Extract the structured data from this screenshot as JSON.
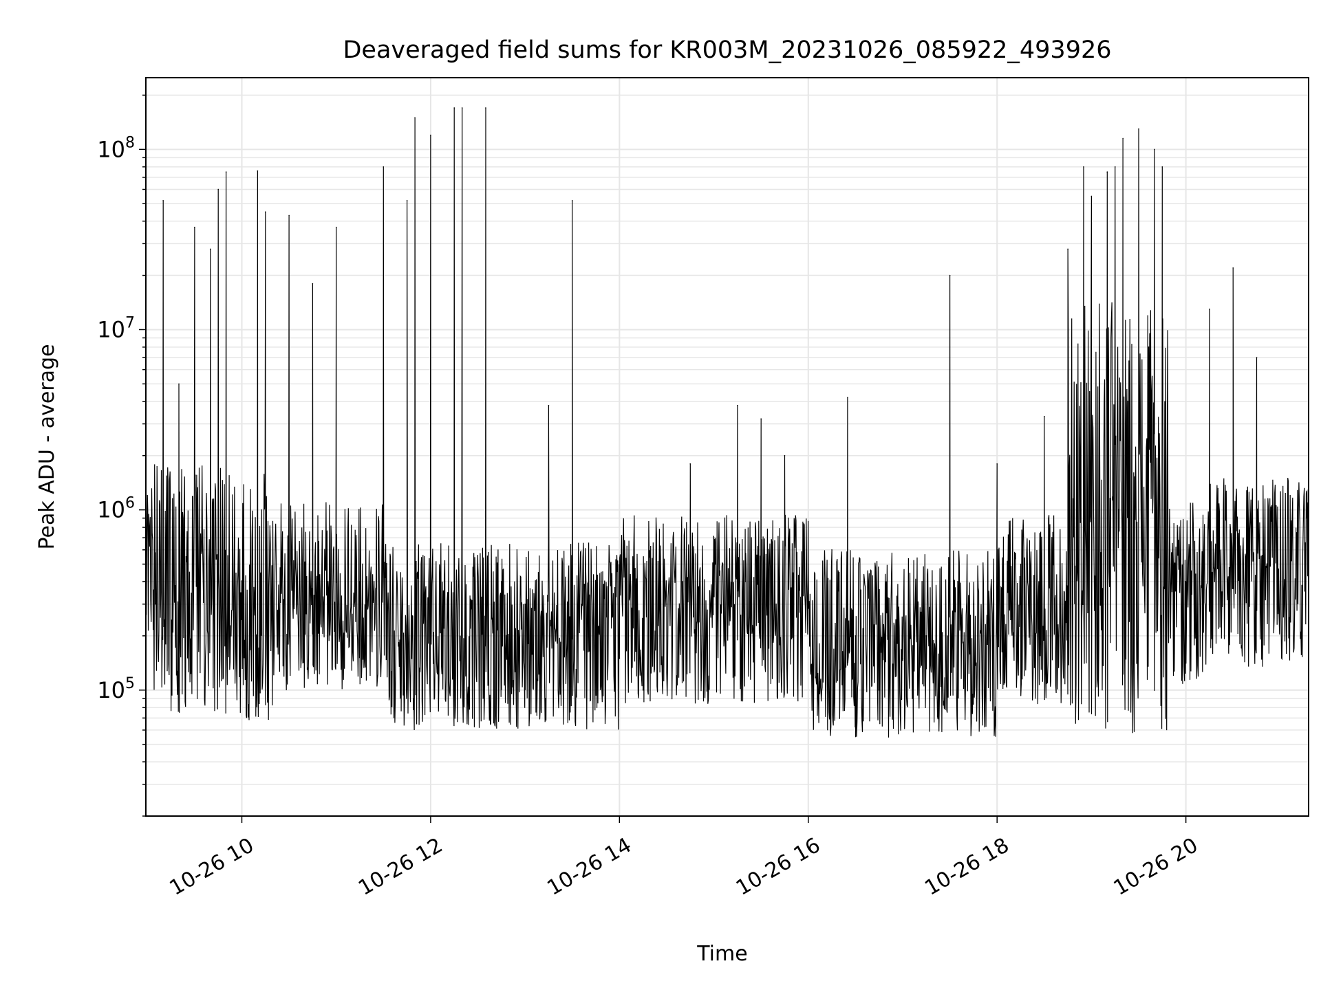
{
  "chart_data": {
    "type": "line",
    "title": "Deaveraged field sums for KR003M_20231026_085922_493926",
    "xlabel": "Time",
    "ylabel": "Peak ADU - average",
    "y_scale": "log",
    "xlim": [
      "10-26 08:59",
      "10-26 21:18"
    ],
    "ylim": [
      20000,
      250000000
    ],
    "x_ticks": [
      {
        "label": "10-26 10",
        "value": "10-26 10:00"
      },
      {
        "label": "10-26 12",
        "value": "10-26 12:00"
      },
      {
        "label": "10-26 14",
        "value": "10-26 14:00"
      },
      {
        "label": "10-26 16",
        "value": "10-26 16:00"
      },
      {
        "label": "10-26 18",
        "value": "10-26 18:00"
      },
      {
        "label": "10-26 20",
        "value": "10-26 20:00"
      }
    ],
    "y_ticks": [
      {
        "base": "10",
        "exp": "5",
        "value": 100000
      },
      {
        "base": "10",
        "exp": "6",
        "value": 1000000
      },
      {
        "base": "10",
        "exp": "7",
        "value": 10000000
      },
      {
        "base": "10",
        "exp": "8",
        "value": 100000000
      }
    ],
    "grid": true,
    "line_color": "#000000",
    "grid_color": "#e6e6e6",
    "series": [
      {
        "x": [
          "10-26 09:00",
          "10-26 09:05",
          "10-26 09:10",
          "10-26 09:20",
          "10-26 09:30",
          "10-26 09:40",
          "10-26 09:45",
          "10-26 09:50",
          "10-26 10:00",
          "10-26 10:10",
          "10-26 10:15",
          "10-26 10:30",
          "10-26 10:35",
          "10-26 10:45",
          "10-26 11:00",
          "10-26 11:15",
          "10-26 11:30",
          "10-26 11:45",
          "10-26 11:50",
          "10-26 12:00",
          "10-26 12:15",
          "10-26 12:20",
          "10-26 12:30",
          "10-26 12:35",
          "10-26 12:45",
          "10-26 13:00",
          "10-26 13:15",
          "10-26 13:30",
          "10-26 13:45",
          "10-26 14:00",
          "10-26 14:15",
          "10-26 14:30",
          "10-26 14:45",
          "10-26 15:00",
          "10-26 15:15",
          "10-26 15:20",
          "10-26 15:30",
          "10-26 15:45",
          "10-26 16:00",
          "10-26 16:15",
          "10-26 16:25",
          "10-26 16:30",
          "10-26 16:45",
          "10-26 17:00",
          "10-26 17:15",
          "10-26 17:30",
          "10-26 17:35",
          "10-26 17:45",
          "10-26 18:00",
          "10-26 18:15",
          "10-26 18:30",
          "10-26 18:45",
          "10-26 18:55",
          "10-26 19:00",
          "10-26 19:10",
          "10-26 19:15",
          "10-26 19:20",
          "10-26 19:30",
          "10-26 19:40",
          "10-26 19:45",
          "10-26 20:00",
          "10-26 20:15",
          "10-26 20:30",
          "10-26 20:45",
          "10-26 21:00",
          "10-26 21:10",
          "10-26 21:17"
        ],
        "values": [
          1200000,
          300000,
          52000000,
          5000000,
          37000000,
          28000000,
          60000000,
          75000000,
          400000,
          76000000,
          45000000,
          43000000,
          300000,
          18000000,
          37000000,
          400000,
          80000000,
          52000000,
          150000000,
          120000000,
          170000000,
          170000000,
          500000,
          170000000,
          400000,
          300000,
          3800000,
          52000000,
          200000,
          150000,
          100000,
          300000,
          1800000,
          700000,
          3800000,
          400000,
          3200000,
          2000000,
          500000,
          600000,
          4200000,
          200000,
          100000,
          150000,
          200000,
          20000000,
          400000,
          300000,
          1800000,
          500000,
          3300000,
          28000000,
          80000000,
          55000000,
          75000000,
          80000000,
          115000000,
          130000000,
          100000000,
          80000000,
          400000,
          13000000,
          22000000,
          7000000,
          1000000,
          600000,
          900000
        ]
      }
    ]
  }
}
